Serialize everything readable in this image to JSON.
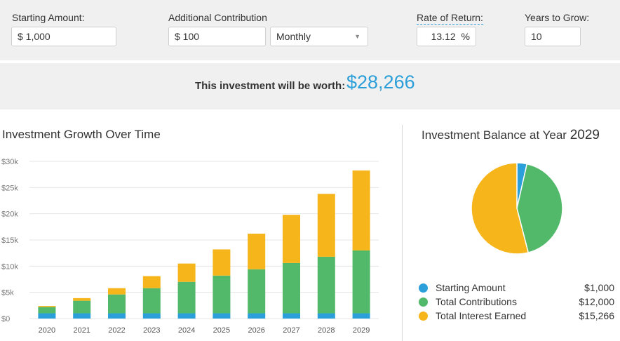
{
  "inputs": {
    "starting_amount": {
      "label": "Starting Amount:",
      "value": "$ 1,000"
    },
    "additional_contribution": {
      "label": "Additional Contribution",
      "value": "$ 100",
      "frequency": "Monthly"
    },
    "rate_of_return": {
      "label": "Rate of Return:",
      "value": "13.12",
      "unit": "%"
    },
    "years_to_grow": {
      "label": "Years to Grow:",
      "value": "10"
    }
  },
  "result": {
    "label": "This investment will be worth:",
    "value": "$28,266"
  },
  "growth_chart": {
    "title": "Investment Growth Over Time"
  },
  "balance": {
    "title_prefix": "Investment Balance at Year",
    "year": "2029"
  },
  "legend": [
    {
      "label": "Starting Amount",
      "value": "$1,000",
      "color": "#2b9fd9"
    },
    {
      "label": "Total Contributions",
      "value": "$12,000",
      "color": "#52b96a"
    },
    {
      "label": "Total Interest Earned",
      "value": "$15,266",
      "color": "#f7b51c"
    }
  ],
  "chart_data": [
    {
      "type": "bar",
      "stacked": true,
      "title": "Investment Growth Over Time",
      "categories": [
        "2020",
        "2021",
        "2022",
        "2023",
        "2024",
        "2025",
        "2026",
        "2027",
        "2028",
        "2029"
      ],
      "ylim": [
        0,
        30000
      ],
      "yticks": [
        0,
        5000,
        10000,
        15000,
        20000,
        25000,
        30000
      ],
      "ytick_labels": [
        "$0",
        "$5k",
        "$10k",
        "$15k",
        "$20k",
        "$25k",
        "$30k"
      ],
      "grid": true,
      "series": [
        {
          "name": "Starting Amount",
          "color": "#2b9fd9",
          "values": [
            1000,
            1000,
            1000,
            1000,
            1000,
            1000,
            1000,
            1000,
            1000,
            1000
          ]
        },
        {
          "name": "Total Contributions",
          "color": "#52b96a",
          "values": [
            1200,
            2400,
            3600,
            4800,
            6000,
            7200,
            8400,
            9600,
            10800,
            12000
          ]
        },
        {
          "name": "Total Interest Earned",
          "color": "#f7b51c",
          "values": [
            200,
            500,
            1200,
            2300,
            3500,
            5000,
            6800,
            9200,
            12000,
            15266
          ]
        }
      ]
    },
    {
      "type": "pie",
      "title": "Investment Balance at Year 2029",
      "labels": [
        "Starting Amount",
        "Total Contributions",
        "Total Interest Earned"
      ],
      "values": [
        1000,
        12000,
        15266
      ],
      "colors": [
        "#2b9fd9",
        "#52b96a",
        "#f7b51c"
      ]
    }
  ]
}
